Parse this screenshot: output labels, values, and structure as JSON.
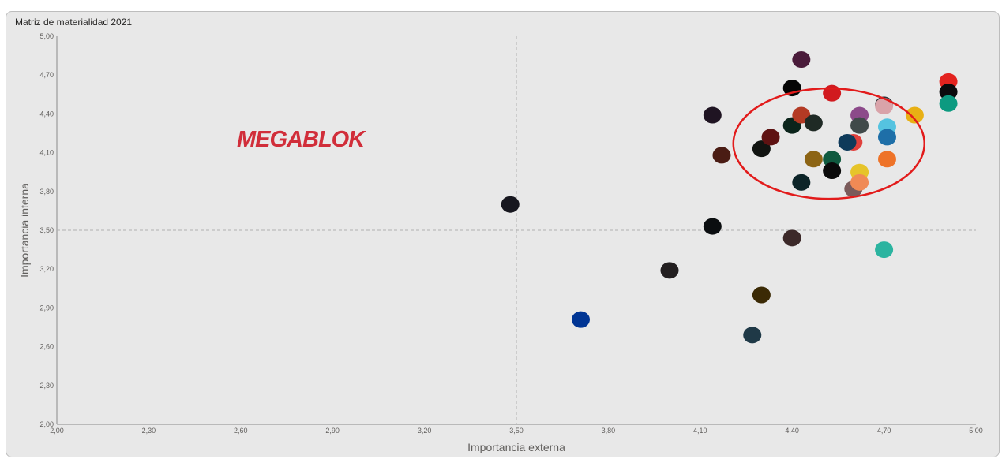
{
  "chart_data": {
    "type": "scatter",
    "title": "Matriz de materialidad 2021",
    "xlabel": "Importancia externa",
    "ylabel": "Importancia interna",
    "xlim": [
      2.0,
      5.0
    ],
    "ylim": [
      2.0,
      5.0
    ],
    "x_ticks": [
      "2,00",
      "2,30",
      "2,60",
      "2,90",
      "3,20",
      "3,50",
      "3,80",
      "4,10",
      "4,40",
      "4,70",
      "5,00"
    ],
    "y_ticks": [
      "2,00",
      "2,30",
      "2,60",
      "2,90",
      "3,20",
      "3,50",
      "3,80",
      "4,10",
      "4,40",
      "4,70",
      "5,00"
    ],
    "reference_lines": {
      "x": 3.5,
      "y": 3.5
    },
    "logo_text": "MEGABLOK",
    "highlight": {
      "shape": "ellipse",
      "color": "#e21b1b",
      "center": [
        4.52,
        4.17
      ]
    },
    "points": [
      {
        "x": 3.48,
        "y": 3.7,
        "color": "#17171f"
      },
      {
        "x": 3.71,
        "y": 2.81,
        "color": "#003594"
      },
      {
        "x": 4.0,
        "y": 3.19,
        "color": "#231f20"
      },
      {
        "x": 4.14,
        "y": 4.39,
        "color": "#1f1422"
      },
      {
        "x": 4.14,
        "y": 3.53,
        "color": "#0b0e10"
      },
      {
        "x": 4.17,
        "y": 4.08,
        "color": "#4a1c14"
      },
      {
        "x": 4.27,
        "y": 2.69,
        "color": "#1f3947"
      },
      {
        "x": 4.3,
        "y": 4.13,
        "color": "#111411"
      },
      {
        "x": 4.3,
        "y": 3.0,
        "color": "#3b2a05"
      },
      {
        "x": 4.33,
        "y": 4.22,
        "color": "#5e1212"
      },
      {
        "x": 4.4,
        "y": 4.6,
        "color": "#050505"
      },
      {
        "x": 4.4,
        "y": 4.31,
        "color": "#0b241b"
      },
      {
        "x": 4.4,
        "y": 3.44,
        "color": "#3c2929"
      },
      {
        "x": 4.43,
        "y": 4.82,
        "color": "#4a1b3a"
      },
      {
        "x": 4.43,
        "y": 4.39,
        "color": "#b33a24"
      },
      {
        "x": 4.43,
        "y": 3.87,
        "color": "#0c2428"
      },
      {
        "x": 4.47,
        "y": 4.33,
        "color": "#1f2a25"
      },
      {
        "x": 4.47,
        "y": 4.05,
        "color": "#8c6414"
      },
      {
        "x": 4.53,
        "y": 4.56,
        "color": "#d11a1f"
      },
      {
        "x": 4.53,
        "y": 4.05,
        "color": "#0f5a3f"
      },
      {
        "x": 4.53,
        "y": 3.96,
        "color": "#0a0a0a"
      },
      {
        "x": 4.6,
        "y": 4.18,
        "color": "#e0403c"
      },
      {
        "x": 4.6,
        "y": 3.82,
        "color": "#7a5a5a"
      },
      {
        "x": 4.62,
        "y": 4.39,
        "color": "#8c4a8a"
      },
      {
        "x": 4.62,
        "y": 4.31,
        "color": "#404a4a"
      },
      {
        "x": 4.62,
        "y": 3.95,
        "color": "#e6c42a"
      },
      {
        "x": 4.62,
        "y": 3.87,
        "color": "#f08a55"
      },
      {
        "x": 4.58,
        "y": 4.18,
        "color": "#0e3a5a"
      },
      {
        "x": 4.7,
        "y": 4.47,
        "color": "#30343a"
      },
      {
        "x": 4.7,
        "y": 4.46,
        "color": "#d9a3a9"
      },
      {
        "x": 4.71,
        "y": 4.3,
        "color": "#55c3e0"
      },
      {
        "x": 4.71,
        "y": 4.22,
        "color": "#1e6fa8"
      },
      {
        "x": 4.71,
        "y": 4.05,
        "color": "#ee7328"
      },
      {
        "x": 4.7,
        "y": 3.35,
        "color": "#2bb4a0"
      },
      {
        "x": 4.8,
        "y": 4.39,
        "color": "#e8b014"
      },
      {
        "x": 4.91,
        "y": 4.65,
        "color": "#e3231f"
      },
      {
        "x": 4.91,
        "y": 4.57,
        "color": "#0b0b0d"
      },
      {
        "x": 4.91,
        "y": 4.48,
        "color": "#0c9a80"
      }
    ]
  }
}
